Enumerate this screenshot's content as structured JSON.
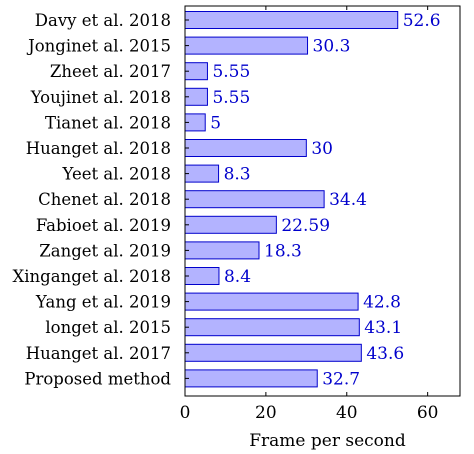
{
  "chart_data": {
    "type": "bar",
    "orientation": "horizontal",
    "title": "",
    "xlabel": "Frame per second",
    "ylabel": "",
    "categories": [
      "Davy et al. 2018",
      "Jonginet al. 2015",
      "Zheet al. 2017",
      "Youjinet al. 2018",
      "Tianet al. 2018",
      "Huanget al. 2018",
      "Yeet al. 2018",
      "Chenet al. 2018",
      "Fabioet al. 2019",
      "Zanget al. 2019",
      "Xinganget al. 2018",
      "Yang et al. 2019",
      "longet al. 2015",
      "Huanget al. 2017",
      "Proposed method"
    ],
    "values": [
      52.6,
      30.3,
      5.55,
      5.55,
      5,
      30,
      8.3,
      34.4,
      22.59,
      18.3,
      8.4,
      42.8,
      43.1,
      43.6,
      32.7
    ],
    "value_labels": [
      "52.6",
      "30.3",
      "5.55",
      "5.55",
      "5",
      "30",
      "8.3",
      "34.4",
      "22.59",
      "18.3",
      "8.4",
      "42.8",
      "43.1",
      "43.6",
      "32.7"
    ],
    "xlim": [
      0,
      68
    ],
    "xticks": [
      0,
      20,
      40,
      60
    ],
    "xtick_labels": [
      "0",
      "20",
      "40",
      "60"
    ],
    "grid": false,
    "legend": "none",
    "colors": {
      "bar_fill": "#b3b3ff",
      "bar_stroke": "#0000cc",
      "value_label": "#0000cc",
      "axis": "#000000"
    }
  }
}
